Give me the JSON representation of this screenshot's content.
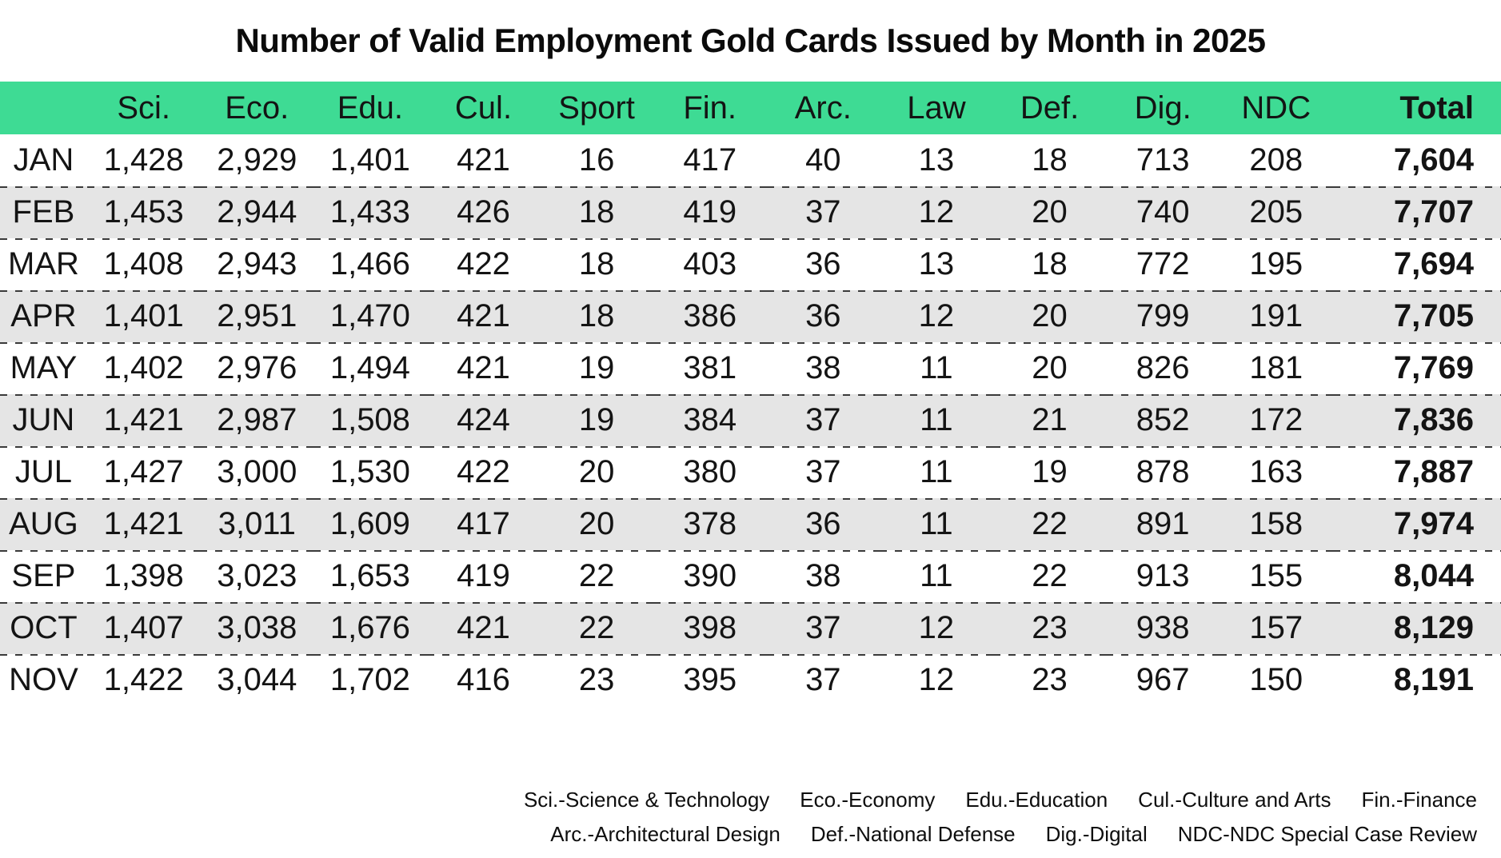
{
  "title": "Number of Valid Employment Gold Cards Issued by Month in 2025",
  "colors": {
    "header_bg": "#3EDB94",
    "row_alt_bg": "#E5E5E5",
    "divider": "#3a3a3a"
  },
  "table": {
    "columns": [
      "",
      "Sci.",
      "Eco.",
      "Edu.",
      "Cul.",
      "Sport",
      "Fin.",
      "Arc.",
      "Law",
      "Def.",
      "Dig.",
      "NDC",
      "Total"
    ],
    "rows": [
      {
        "cells": [
          "JAN",
          "1,428",
          "2,929",
          "1,401",
          "421",
          "16",
          "417",
          "40",
          "13",
          "18",
          "713",
          "208",
          "7,604"
        ]
      },
      {
        "cells": [
          "FEB",
          "1,453",
          "2,944",
          "1,433",
          "426",
          "18",
          "419",
          "37",
          "12",
          "20",
          "740",
          "205",
          "7,707"
        ]
      },
      {
        "cells": [
          "MAR",
          "1,408",
          "2,943",
          "1,466",
          "422",
          "18",
          "403",
          "36",
          "13",
          "18",
          "772",
          "195",
          "7,694"
        ]
      },
      {
        "cells": [
          "APR",
          "1,401",
          "2,951",
          "1,470",
          "421",
          "18",
          "386",
          "36",
          "12",
          "20",
          "799",
          "191",
          "7,705"
        ]
      },
      {
        "cells": [
          "MAY",
          "1,402",
          "2,976",
          "1,494",
          "421",
          "19",
          "381",
          "38",
          "11",
          "20",
          "826",
          "181",
          "7,769"
        ]
      },
      {
        "cells": [
          "JUN",
          "1,421",
          "2,987",
          "1,508",
          "424",
          "19",
          "384",
          "37",
          "11",
          "21",
          "852",
          "172",
          "7,836"
        ]
      },
      {
        "cells": [
          "JUL",
          "1,427",
          "3,000",
          "1,530",
          "422",
          "20",
          "380",
          "37",
          "11",
          "19",
          "878",
          "163",
          "7,887"
        ]
      },
      {
        "cells": [
          "AUG",
          "1,421",
          "3,011",
          "1,609",
          "417",
          "20",
          "378",
          "36",
          "11",
          "22",
          "891",
          "158",
          "7,974"
        ]
      },
      {
        "cells": [
          "SEP",
          "1,398",
          "3,023",
          "1,653",
          "419",
          "22",
          "390",
          "38",
          "11",
          "22",
          "913",
          "155",
          "8,044"
        ]
      },
      {
        "cells": [
          "OCT",
          "1,407",
          "3,038",
          "1,676",
          "421",
          "22",
          "398",
          "37",
          "12",
          "23",
          "938",
          "157",
          "8,129"
        ]
      },
      {
        "cells": [
          "NOV",
          "1,422",
          "3,044",
          "1,702",
          "416",
          "23",
          "395",
          "37",
          "12",
          "23",
          "967",
          "150",
          "8,191"
        ]
      }
    ]
  },
  "legend": {
    "lines": [
      {
        "items": [
          "Sci.-Science & Technology",
          "Eco.-Economy",
          "Edu.-Education",
          "Cul.-Culture and Arts",
          "Fin.-Finance"
        ]
      },
      {
        "items": [
          "Arc.-Architectural Design",
          "Def.-National Defense",
          "Dig.-Digital",
          "NDC-NDC Special Case Review"
        ]
      }
    ]
  },
  "chart_data": {
    "type": "table",
    "title": "Number of Valid Employment Gold Cards Issued by Month in 2025",
    "columns": [
      "Sci.",
      "Eco.",
      "Edu.",
      "Cul.",
      "Sport",
      "Fin.",
      "Arc.",
      "Law",
      "Def.",
      "Dig.",
      "NDC",
      "Total"
    ],
    "categories": [
      "JAN",
      "FEB",
      "MAR",
      "APR",
      "MAY",
      "JUN",
      "JUL",
      "AUG",
      "SEP",
      "OCT",
      "NOV"
    ],
    "values": [
      [
        1428,
        2929,
        1401,
        421,
        16,
        417,
        40,
        13,
        18,
        713,
        208,
        7604
      ],
      [
        1453,
        2944,
        1433,
        426,
        18,
        419,
        37,
        12,
        20,
        740,
        205,
        7707
      ],
      [
        1408,
        2943,
        1466,
        422,
        18,
        403,
        36,
        13,
        18,
        772,
        195,
        7694
      ],
      [
        1401,
        2951,
        1470,
        421,
        18,
        386,
        36,
        12,
        20,
        799,
        191,
        7705
      ],
      [
        1402,
        2976,
        1494,
        421,
        19,
        381,
        38,
        11,
        20,
        826,
        181,
        7769
      ],
      [
        1421,
        2987,
        1508,
        424,
        19,
        384,
        37,
        11,
        21,
        852,
        172,
        7836
      ],
      [
        1427,
        3000,
        1530,
        422,
        20,
        380,
        37,
        11,
        19,
        878,
        163,
        7887
      ],
      [
        1421,
        3011,
        1609,
        417,
        20,
        378,
        36,
        11,
        22,
        891,
        158,
        7974
      ],
      [
        1398,
        3023,
        1653,
        419,
        22,
        390,
        38,
        11,
        22,
        913,
        155,
        8044
      ],
      [
        1407,
        3038,
        1676,
        421,
        22,
        398,
        37,
        12,
        23,
        938,
        157,
        8129
      ],
      [
        1422,
        3044,
        1702,
        416,
        23,
        395,
        37,
        12,
        23,
        967,
        150,
        8191
      ]
    ],
    "abbreviations": {
      "Sci.": "Science & Technology",
      "Eco.": "Economy",
      "Edu.": "Education",
      "Cul.": "Culture and Arts",
      "Fin.": "Finance",
      "Arc.": "Architectural Design",
      "Def.": "National Defense",
      "Dig.": "Digital",
      "NDC": "NDC Special Case Review"
    }
  }
}
